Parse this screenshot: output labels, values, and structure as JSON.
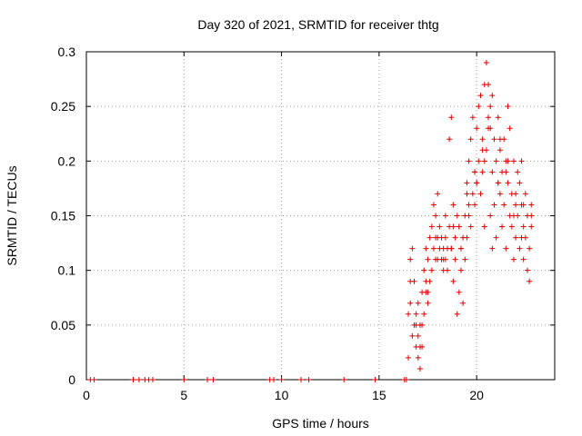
{
  "chart_data": {
    "type": "scatter",
    "title": "Day 320 of 2021, SRMTID for receiver thtg",
    "xlabel": "GPS time / hours",
    "ylabel": "SRMTID / TECUs",
    "xlim": [
      0,
      24
    ],
    "ylim": [
      0,
      0.3
    ],
    "xticks": [
      0,
      5,
      10,
      15,
      20
    ],
    "yticks": [
      0,
      0.05,
      0.1,
      0.15,
      0.2,
      0.25,
      0.3
    ],
    "xtick_labels": [
      "0",
      "5",
      "10",
      "15",
      "20"
    ],
    "ytick_labels": [
      "0",
      "0.05",
      "0.1",
      "0.15",
      "0.2",
      "0.25",
      "0.3"
    ],
    "grid": true,
    "marker": "+",
    "series": [
      {
        "name": "SRMTID",
        "color": "#e00000",
        "x": [
          0.2,
          0.4,
          2.4,
          2.7,
          3.0,
          3.2,
          3.4,
          5.0,
          6.2,
          6.5,
          9.4,
          9.6,
          10.0,
          11.0,
          11.4,
          13.2,
          14.8,
          16.3,
          16.4,
          16.5,
          16.5,
          16.6,
          16.6,
          16.7,
          16.7,
          16.8,
          16.8,
          16.9,
          16.9,
          17.0,
          17.0,
          17.1,
          17.1,
          17.2,
          17.2,
          17.3,
          17.3,
          17.4,
          17.4,
          17.5,
          17.5,
          17.6,
          17.6,
          17.7,
          17.7,
          17.8,
          17.8,
          17.9,
          17.9,
          18.0,
          18.0,
          18.1,
          18.1,
          18.2,
          18.2,
          18.3,
          18.3,
          18.4,
          18.4,
          18.5,
          18.5,
          18.6,
          18.6,
          18.7,
          18.7,
          18.8,
          18.8,
          18.9,
          18.9,
          19.0,
          19.0,
          19.1,
          19.1,
          19.2,
          19.2,
          19.3,
          19.3,
          19.4,
          19.4,
          19.5,
          19.5,
          19.6,
          19.6,
          19.7,
          19.7,
          19.8,
          19.8,
          19.9,
          19.9,
          20.0,
          20.0,
          20.1,
          20.1,
          20.2,
          20.2,
          20.3,
          20.3,
          20.4,
          20.4,
          20.5,
          20.5,
          20.6,
          20.6,
          20.7,
          20.7,
          20.8,
          20.8,
          20.9,
          20.9,
          21.0,
          21.0,
          21.1,
          21.1,
          21.2,
          21.2,
          21.3,
          21.3,
          21.4,
          21.4,
          21.5,
          21.5,
          21.6,
          21.6,
          21.7,
          21.7,
          21.8,
          21.8,
          21.9,
          21.9,
          22.0,
          22.0,
          22.1,
          22.1,
          22.2,
          22.2,
          22.3,
          22.3,
          22.4,
          22.4,
          22.5,
          22.5,
          22.6,
          22.6,
          22.7,
          22.7,
          22.8,
          22.8,
          17.0,
          17.2,
          17.4,
          18.0,
          18.4,
          18.8,
          19.2,
          19.6,
          20.0,
          20.4,
          20.6,
          20.8,
          21.2,
          21.6,
          22.0,
          22.4,
          22.8,
          16.6,
          16.9,
          17.1,
          17.5,
          17.9,
          18.3,
          18.7,
          19.1,
          19.5,
          19.9,
          20.3,
          20.7,
          21.1,
          21.5,
          21.9,
          22.3
        ],
        "y": [
          0,
          0,
          0,
          0,
          0,
          0,
          0,
          0,
          0,
          0,
          0,
          0,
          0,
          0,
          0,
          0,
          0,
          0,
          0,
          0.02,
          0.06,
          0.11,
          0.07,
          0.04,
          0.12,
          0.05,
          0.09,
          0.03,
          0.06,
          0.02,
          0.04,
          0.01,
          0.05,
          0.03,
          0.08,
          0.06,
          0.1,
          0.08,
          0.12,
          0.07,
          0.11,
          0.09,
          0.13,
          0.1,
          0.14,
          0.12,
          0.16,
          0.11,
          0.15,
          0.13,
          0.17,
          0.12,
          0.14,
          0.11,
          0.13,
          0.1,
          0.12,
          0.11,
          0.15,
          0.12,
          0.1,
          0.22,
          0.14,
          0.24,
          0.12,
          0.16,
          0.09,
          0.13,
          0.11,
          0.15,
          0.06,
          0.14,
          0.08,
          0.12,
          0.1,
          0.13,
          0.07,
          0.15,
          0.11,
          0.18,
          0.13,
          0.2,
          0.15,
          0.22,
          0.14,
          0.17,
          0.24,
          0.19,
          0.16,
          0.23,
          0.18,
          0.25,
          0.2,
          0.26,
          0.17,
          0.22,
          0.19,
          0.27,
          0.14,
          0.21,
          0.29,
          0.23,
          0.27,
          0.25,
          0.15,
          0.19,
          0.12,
          0.22,
          0.16,
          0.2,
          0.13,
          0.18,
          0.24,
          0.21,
          0.17,
          0.14,
          0.19,
          0.22,
          0.16,
          0.2,
          0.12,
          0.18,
          0.25,
          0.15,
          0.23,
          0.17,
          0.14,
          0.2,
          0.11,
          0.16,
          0.13,
          0.19,
          0.15,
          0.18,
          0.12,
          0.2,
          0.16,
          0.14,
          0.11,
          0.17,
          0.13,
          0.1,
          0.15,
          0.12,
          0.09,
          0.16,
          0.14,
          0.07,
          0.05,
          0.09,
          0.11,
          0.13,
          0.14,
          0.12,
          0.16,
          0.18,
          0.2,
          0.24,
          0.26,
          0.22,
          0.2,
          0.17,
          0.16,
          0.15,
          0.09,
          0.05,
          0.03,
          0.08,
          0.13,
          0.11,
          0.12,
          0.14,
          0.17,
          0.19,
          0.21,
          0.23,
          0.18,
          0.19,
          0.15,
          0.13
        ]
      }
    ]
  }
}
